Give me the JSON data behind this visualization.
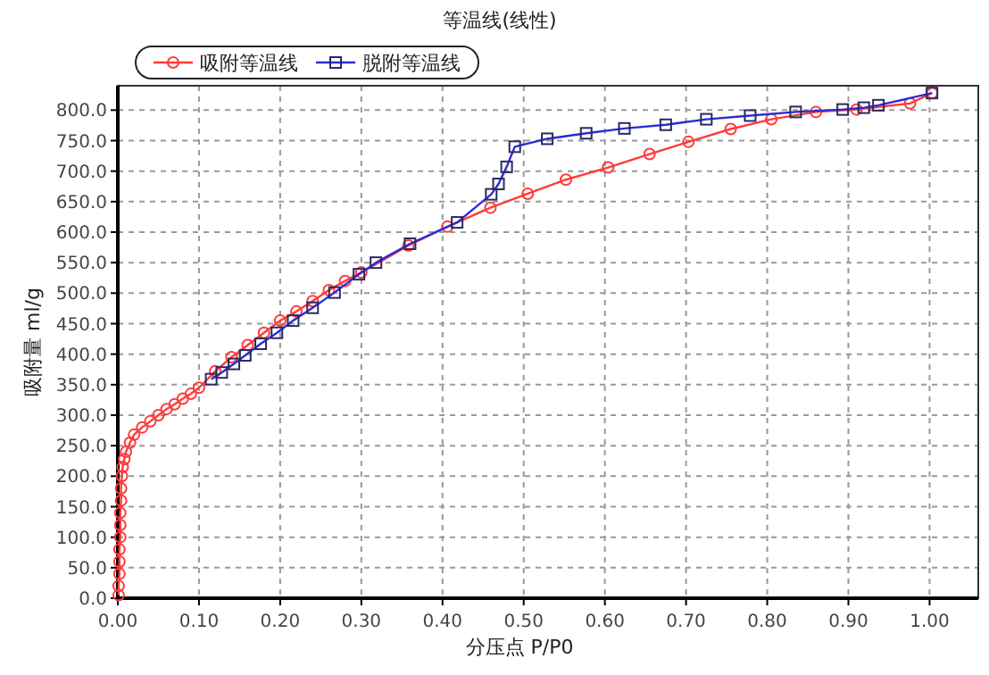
{
  "chart_data": {
    "type": "line",
    "title": "等温线(线性)",
    "xlabel": "分压点 P/P0",
    "ylabel": "吸附量 ml/g",
    "xlim": [
      0,
      1.06
    ],
    "ylim": [
      0,
      840
    ],
    "xticks": [
      {
        "value": 0,
        "label": "0.00"
      },
      {
        "value": 0.1,
        "label": "0.10"
      },
      {
        "value": 0.2,
        "label": "0.20"
      },
      {
        "value": 0.3,
        "label": "0.30"
      },
      {
        "value": 0.4,
        "label": "0.40"
      },
      {
        "value": 0.5,
        "label": "0.50"
      },
      {
        "value": 0.6,
        "label": "0.60"
      },
      {
        "value": 0.7,
        "label": "0.70"
      },
      {
        "value": 0.8,
        "label": "0.80"
      },
      {
        "value": 0.9,
        "label": "0.90"
      },
      {
        "value": 1,
        "label": "1.00"
      }
    ],
    "yticks": [
      {
        "value": 0,
        "label": "0.0"
      },
      {
        "value": 50,
        "label": "50.0"
      },
      {
        "value": 100,
        "label": "100.0"
      },
      {
        "value": 150,
        "label": "150.0"
      },
      {
        "value": 200,
        "label": "200.0"
      },
      {
        "value": 250,
        "label": "250.0"
      },
      {
        "value": 300,
        "label": "300.0"
      },
      {
        "value": 350,
        "label": "350.0"
      },
      {
        "value": 400,
        "label": "400.0"
      },
      {
        "value": 450,
        "label": "450.0"
      },
      {
        "value": 500,
        "label": "500.0"
      },
      {
        "value": 550,
        "label": "550.0"
      },
      {
        "value": 600,
        "label": "600.0"
      },
      {
        "value": 650,
        "label": "650.0"
      },
      {
        "value": 700,
        "label": "700.0"
      },
      {
        "value": 750,
        "label": "750.0"
      },
      {
        "value": 800,
        "label": "800.0"
      }
    ],
    "grid": true,
    "legend": "top left",
    "line_style": "solid",
    "series": [
      {
        "name": "吸附等温线",
        "color": "#ff3b3b",
        "marker": "circle",
        "x": [
          0.001,
          0.001,
          0.002,
          0.002,
          0.002,
          0.003,
          0.003,
          0.003,
          0.004,
          0.004,
          0.005,
          0.006,
          0.008,
          0.01,
          0.015,
          0.02,
          0.03,
          0.04,
          0.05,
          0.06,
          0.07,
          0.08,
          0.09,
          0.1,
          0.12,
          0.14,
          0.16,
          0.18,
          0.2,
          0.22,
          0.24,
          0.26,
          0.28,
          0.3,
          0.358,
          0.406,
          0.459,
          0.505,
          0.552,
          0.604,
          0.655,
          0.703,
          0.755,
          0.805,
          0.86,
          0.91,
          0.976,
          1.003
        ],
        "values": [
          5,
          20,
          40,
          60,
          80,
          100,
          120,
          140,
          160,
          180,
          200,
          215,
          228,
          240,
          255,
          268,
          280,
          290,
          300,
          310,
          318,
          327,
          335,
          345,
          372,
          395,
          415,
          435,
          455,
          470,
          487,
          505,
          520,
          534,
          578,
          609,
          640,
          663,
          686,
          706,
          728,
          748,
          769,
          785,
          797,
          801,
          811,
          828
        ]
      },
      {
        "name": "脱附等温线",
        "color": "#2b2bd9",
        "marker": "square",
        "x": [
          1.003,
          0.937,
          0.919,
          0.893,
          0.835,
          0.779,
          0.725,
          0.675,
          0.624,
          0.577,
          0.529,
          0.489,
          0.479,
          0.469,
          0.46,
          0.418,
          0.36,
          0.318,
          0.297,
          0.267,
          0.24,
          0.216,
          0.196,
          0.176,
          0.157,
          0.143,
          0.128,
          0.115
        ],
        "values": [
          828,
          808,
          804,
          801,
          797,
          791,
          785,
          776,
          770,
          762,
          753,
          740,
          707,
          679,
          662,
          616,
          581,
          550,
          531,
          501,
          476,
          455,
          435,
          417,
          398,
          384,
          370,
          359
        ]
      }
    ]
  }
}
